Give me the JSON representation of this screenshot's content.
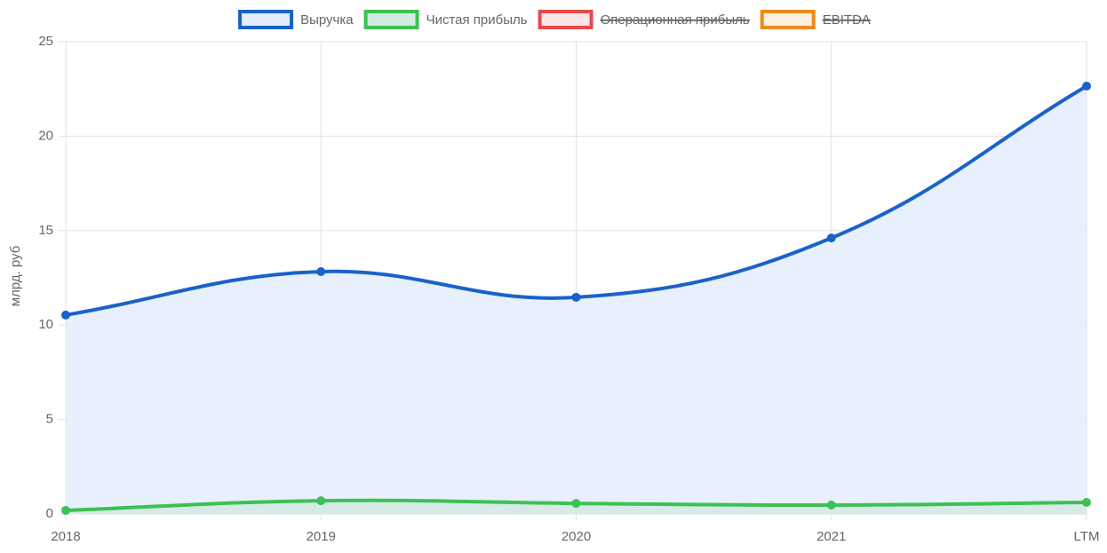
{
  "chart_data": {
    "type": "line",
    "y_label": "млрд. руб",
    "categories": [
      "2018",
      "2019",
      "2020",
      "2021",
      "LTM"
    ],
    "series": [
      {
        "name": "Выручка",
        "color": "#1a62c9",
        "fill_color": "#e3edfb",
        "fill": true,
        "values": [
          10.53,
          12.83,
          11.47,
          14.61,
          22.65
        ]
      },
      {
        "name": "Чистая прибыль",
        "color": "#3cc153",
        "fill_color": "#d3e9e3",
        "fill": true,
        "values": [
          0.19,
          0.7,
          0.56,
          0.47,
          0.61
        ]
      },
      {
        "name": "Операционная прибыль",
        "color": "#e84a4a",
        "fill_color": "#fde6e6",
        "hidden": true
      },
      {
        "name": "EBITDA",
        "color": "#ee8a1c",
        "fill_color": "#fdf0e0",
        "hidden": true
      }
    ],
    "ylim": [
      0,
      25
    ],
    "yticks": [
      0,
      5,
      10,
      15,
      20,
      25
    ],
    "grid": true,
    "tension": 0.4,
    "legend": "top"
  }
}
